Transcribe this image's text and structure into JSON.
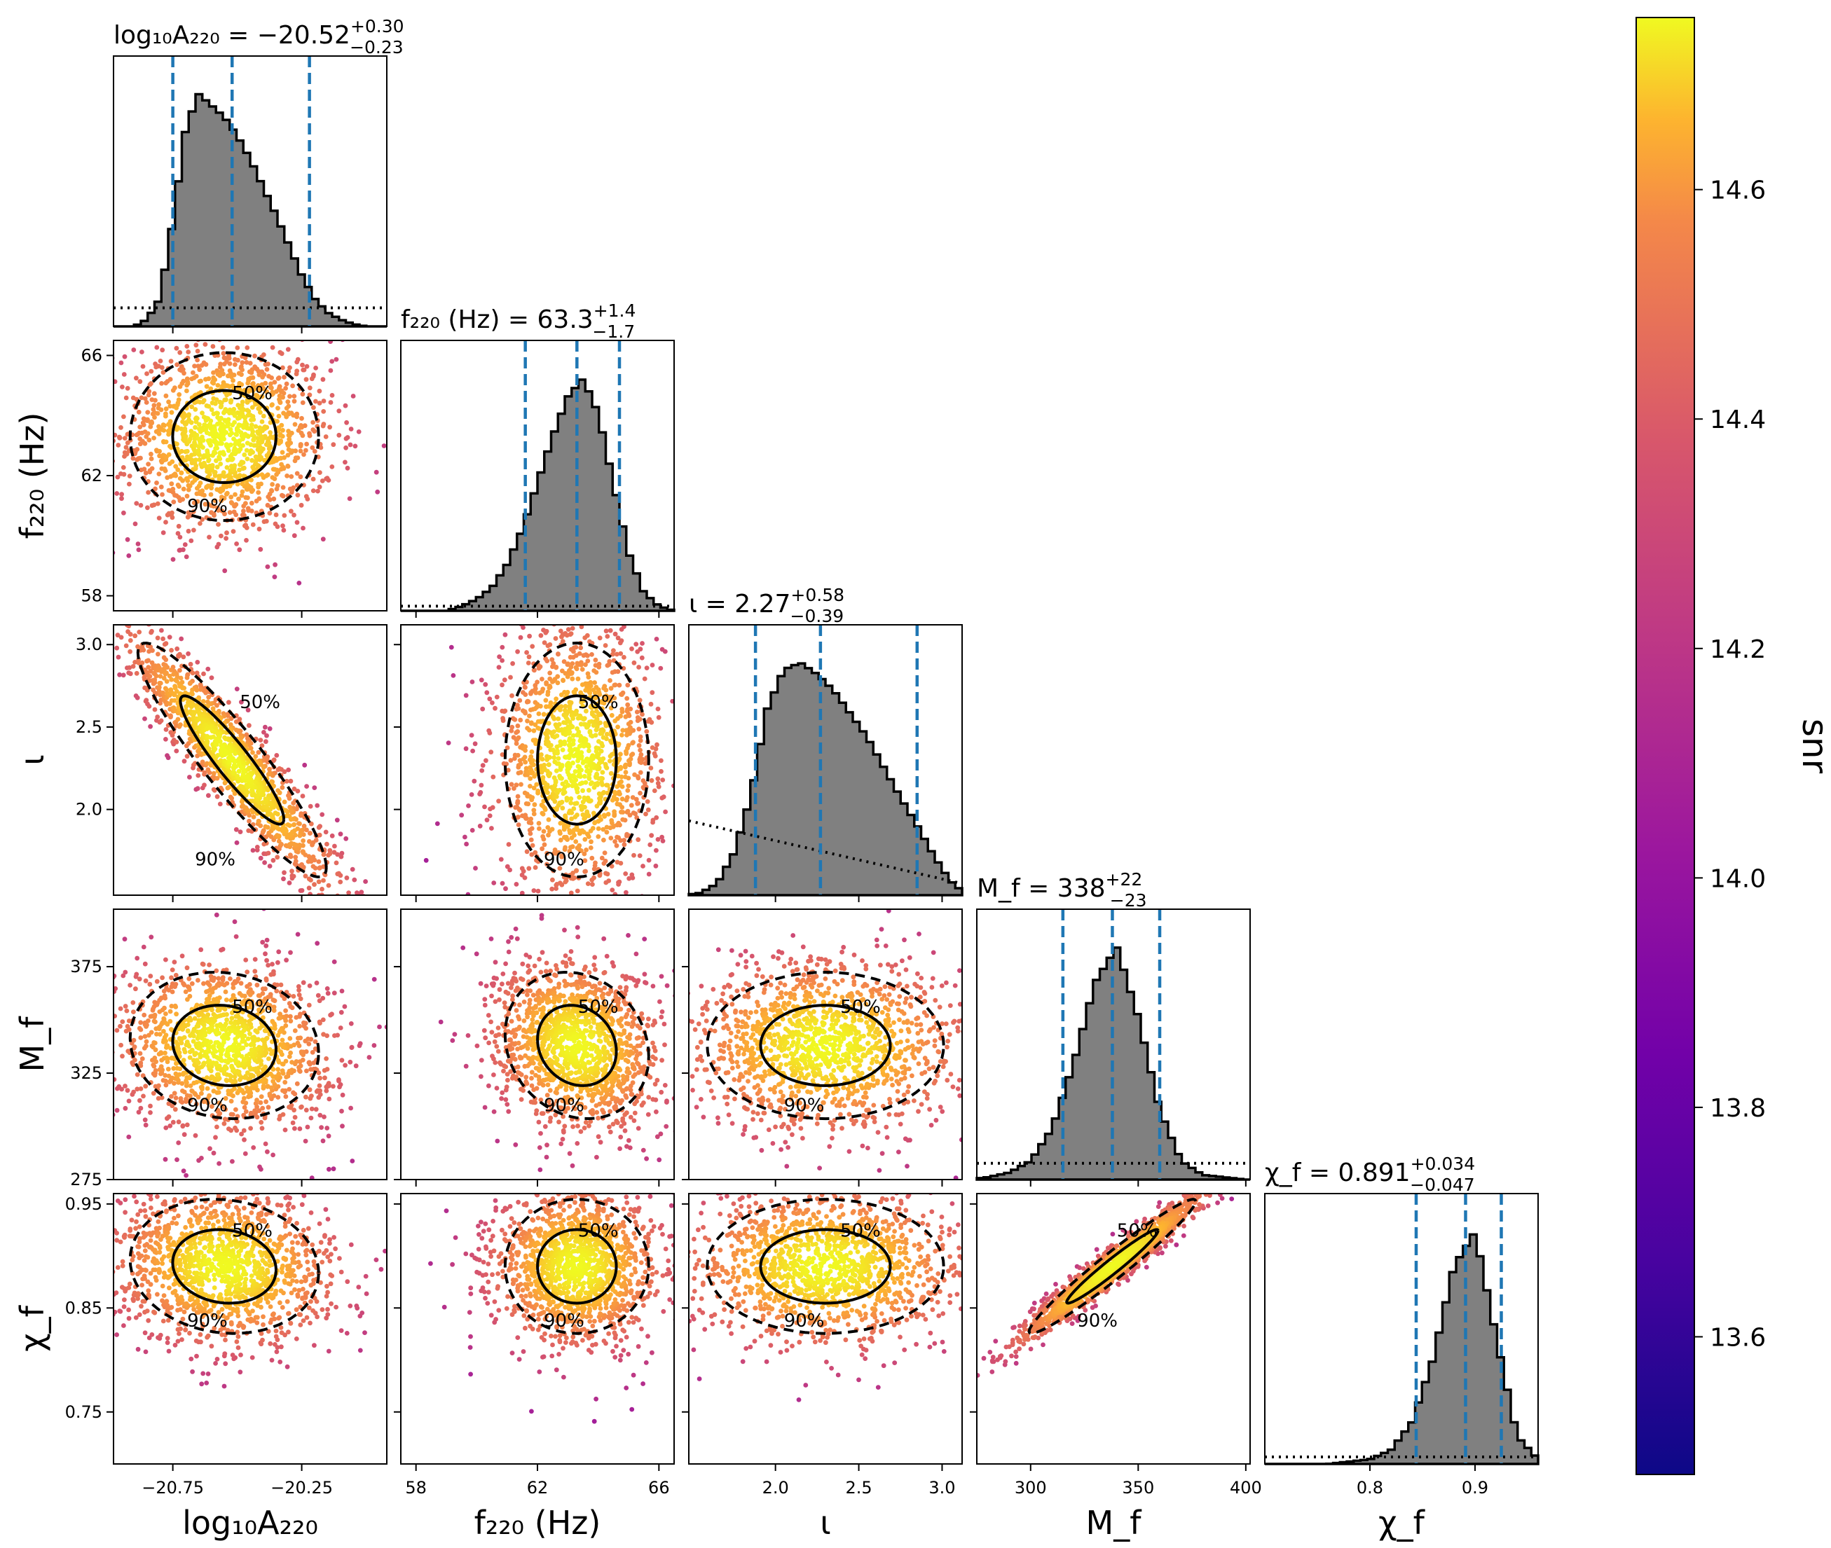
{
  "chart_data": {
    "type": "scatter",
    "subtype": "corner-plot",
    "parameters": [
      {
        "key": "logA",
        "label": "log₁₀A₂₂₀",
        "axis_label": "log₁₀A₂₂₀",
        "title": "log₁₀A₂₂₀ = −20.52",
        "median": -20.52,
        "err_plus": "+0.30",
        "err_minus": "−0.23",
        "lo": -20.75,
        "hi": -20.22,
        "range": [
          -20.98,
          -19.92
        ],
        "ticks": [
          -20.75,
          -20.25
        ],
        "tick_labels": [
          "−20.75",
          "−20.25"
        ],
        "ylabel": ""
      },
      {
        "key": "f220",
        "label": "f₂₂₀ (Hz)",
        "axis_label": "f₂₂₀ (Hz)",
        "title": "f₂₂₀ (Hz) = 63.3",
        "median": 63.3,
        "err_plus": "+1.4",
        "err_minus": "−1.7",
        "lo": 61.6,
        "hi": 64.7,
        "range": [
          57.5,
          66.5
        ],
        "ticks": [
          58,
          62,
          66
        ],
        "tick_labels": [
          "58",
          "62",
          "66"
        ],
        "ylabel": "f₂₂₀ (Hz)"
      },
      {
        "key": "iota",
        "label": "ι",
        "axis_label": "ι",
        "title": "ι = 2.27",
        "median": 2.27,
        "err_plus": "+0.58",
        "err_minus": "−0.39",
        "lo": 1.88,
        "hi": 2.85,
        "range": [
          1.48,
          3.12
        ],
        "ticks": [
          2.0,
          2.5,
          3.0
        ],
        "tick_labels": [
          "2.0",
          "2.5",
          "3.0"
        ],
        "ylabel": "ι"
      },
      {
        "key": "Mf",
        "label": "M_f",
        "axis_label": "M_f",
        "title": "M_f = 338",
        "median": 338,
        "err_plus": "+22",
        "err_minus": "−23",
        "lo": 315,
        "hi": 360,
        "range": [
          275,
          402
        ],
        "ticks": [
          300,
          350,
          400
        ],
        "tick_labels": [
          "300",
          "350",
          "400"
        ],
        "yticks": [
          275,
          325,
          375
        ],
        "ytick_labels": [
          "275",
          "325",
          "375"
        ],
        "ylabel": "M_f"
      },
      {
        "key": "chif",
        "label": "χ_f",
        "axis_label": "χ_f",
        "title": "χ_f = 0.891",
        "median": 0.891,
        "err_plus": "+0.034",
        "err_minus": "−0.047",
        "lo": 0.844,
        "hi": 0.925,
        "range": [
          0.7,
          0.96
        ],
        "ticks": [
          0.8,
          0.9
        ],
        "tick_labels": [
          "0.8",
          "0.9"
        ],
        "yticks": [
          0.75,
          0.85,
          0.95
        ],
        "ytick_labels": [
          "0.75",
          "0.85",
          "0.95"
        ],
        "ylabel": "χ_f"
      }
    ],
    "posteriors": [
      {
        "param": "logA",
        "x": [
          -20.85,
          -20.8,
          -20.75,
          -20.7,
          -20.65,
          -20.6,
          -20.55,
          -20.5,
          -20.45,
          -20.4,
          -20.35,
          -20.3,
          -20.25,
          -20.2,
          -20.15,
          -20.1,
          -20.05
        ],
        "density": [
          0.03,
          0.12,
          0.45,
          0.85,
          1.0,
          0.95,
          0.9,
          0.82,
          0.72,
          0.6,
          0.48,
          0.35,
          0.22,
          0.12,
          0.06,
          0.03,
          0.01
        ]
      },
      {
        "param": "f220",
        "x": [
          59.5,
          60.0,
          60.5,
          61.0,
          61.5,
          62.0,
          62.5,
          63.0,
          63.5,
          64.0,
          64.5,
          65.0,
          65.5,
          66.0
        ],
        "density": [
          0.02,
          0.05,
          0.1,
          0.2,
          0.35,
          0.55,
          0.75,
          0.92,
          1.0,
          0.85,
          0.55,
          0.25,
          0.08,
          0.02
        ]
      },
      {
        "param": "iota",
        "x": [
          1.55,
          1.65,
          1.75,
          1.85,
          1.95,
          2.05,
          2.15,
          2.25,
          2.35,
          2.45,
          2.55,
          2.65,
          2.75,
          2.85,
          2.95,
          3.05
        ],
        "density": [
          0.01,
          0.05,
          0.18,
          0.42,
          0.8,
          0.97,
          1.0,
          0.95,
          0.88,
          0.78,
          0.68,
          0.55,
          0.42,
          0.3,
          0.17,
          0.06
        ]
      },
      {
        "param": "Mf",
        "x": [
          280,
          290,
          300,
          310,
          320,
          330,
          340,
          350,
          360,
          370,
          380,
          390
        ],
        "density": [
          0.01,
          0.03,
          0.08,
          0.22,
          0.5,
          0.85,
          1.0,
          0.7,
          0.3,
          0.08,
          0.02,
          0.01
        ]
      },
      {
        "param": "chif",
        "x": [
          0.78,
          0.8,
          0.82,
          0.84,
          0.86,
          0.88,
          0.9,
          0.92,
          0.94,
          0.96
        ],
        "density": [
          0.01,
          0.02,
          0.06,
          0.18,
          0.45,
          0.85,
          1.0,
          0.55,
          0.12,
          0.02
        ]
      }
    ],
    "priors": [
      {
        "param": "logA",
        "shape": "flat",
        "density": 0.08
      },
      {
        "param": "f220",
        "shape": "flat",
        "density": 0.02
      },
      {
        "param": "iota",
        "shape": "decreasing",
        "density_start": 0.32,
        "density_end": 0.05
      },
      {
        "param": "Mf",
        "shape": "flat",
        "density": 0.07
      },
      {
        "param": "chif",
        "shape": "flat",
        "density": 0.03
      }
    ],
    "pairs": [
      {
        "x": "logA",
        "y": "f220",
        "cx": -20.55,
        "cy": 63.3,
        "sx": 0.17,
        "sy": 1.3,
        "rho": 0.0
      },
      {
        "x": "logA",
        "y": "iota",
        "cx": -20.52,
        "cy": 2.3,
        "sx": 0.17,
        "sy": 0.33,
        "rho": -0.92
      },
      {
        "x": "f220",
        "y": "iota",
        "cx": 63.3,
        "cy": 2.3,
        "sx": 1.1,
        "sy": 0.33,
        "rho": 0.0
      },
      {
        "x": "logA",
        "y": "Mf",
        "cx": -20.55,
        "cy": 338,
        "sx": 0.17,
        "sy": 16,
        "rho": -0.1
      },
      {
        "x": "f220",
        "y": "Mf",
        "cx": 63.3,
        "cy": 338,
        "sx": 1.1,
        "sy": 16,
        "rho": -0.15
      },
      {
        "x": "iota",
        "y": "Mf",
        "cx": 2.3,
        "cy": 338,
        "sx": 0.33,
        "sy": 16,
        "rho": 0.0
      },
      {
        "x": "logA",
        "y": "chif",
        "cx": -20.55,
        "cy": 0.89,
        "sx": 0.17,
        "sy": 0.03,
        "rho": -0.1
      },
      {
        "x": "f220",
        "y": "chif",
        "cx": 63.3,
        "cy": 0.89,
        "sx": 1.1,
        "sy": 0.03,
        "rho": 0.0
      },
      {
        "x": "iota",
        "y": "chif",
        "cx": 2.3,
        "cy": 0.89,
        "sx": 0.33,
        "sy": 0.03,
        "rho": 0.0
      },
      {
        "x": "Mf",
        "y": "chif",
        "cx": 338,
        "cy": 0.89,
        "sx": 18,
        "sy": 0.03,
        "rho": 0.97
      }
    ],
    "contour_labels": [
      "50%",
      "90%"
    ],
    "colorbar": {
      "label": "snr",
      "min": 13.48,
      "max": 14.75,
      "ticks": [
        13.6,
        13.8,
        14.0,
        14.2,
        14.4,
        14.6
      ],
      "tick_labels": [
        "13.6",
        "13.8",
        "14.0",
        "14.2",
        "14.4",
        "14.6"
      ],
      "colormap": "plasma"
    },
    "colors": {
      "histogram_fill": "#808080",
      "histogram_edge": "#000000",
      "credible_lines": "#1f77b4",
      "prior_line": "#000000",
      "contour": "#000000"
    }
  }
}
